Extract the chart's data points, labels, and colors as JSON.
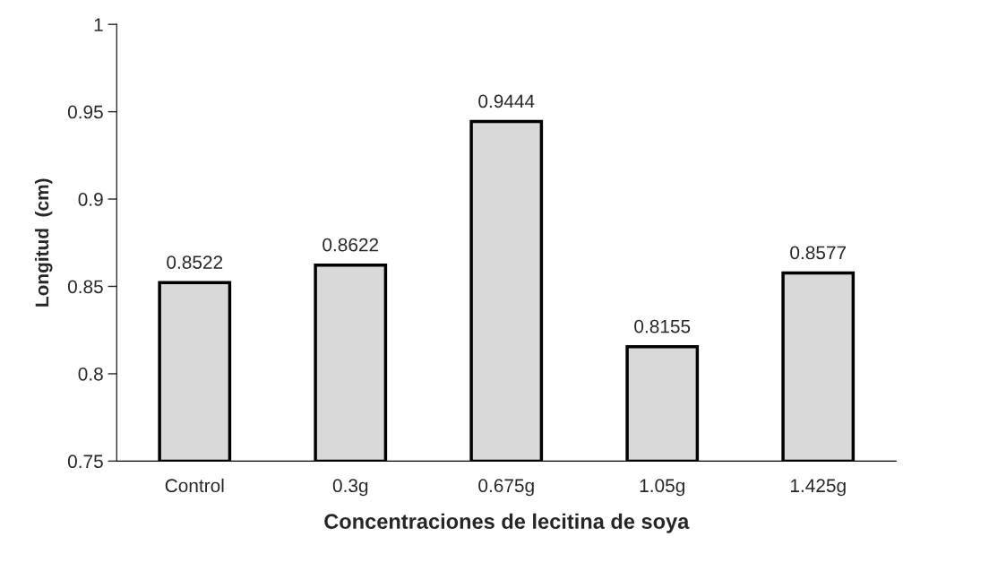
{
  "chart_data": {
    "type": "bar",
    "xlabel": "Concentraciones de lecitina de soya",
    "ylabel": "Longitud  (cm)",
    "categories": [
      "Control",
      "0.3g",
      "0.675g",
      "1.05g",
      "1.425g"
    ],
    "values": [
      0.8522,
      0.8622,
      0.9444,
      0.8155,
      0.8577
    ],
    "color": "#d9d9d9",
    "ylim": [
      0.75,
      1
    ],
    "yticks": [
      0.75,
      0.8,
      0.85,
      0.9,
      0.95,
      1
    ],
    "data_labels": true,
    "grid": false,
    "legend": false
  }
}
